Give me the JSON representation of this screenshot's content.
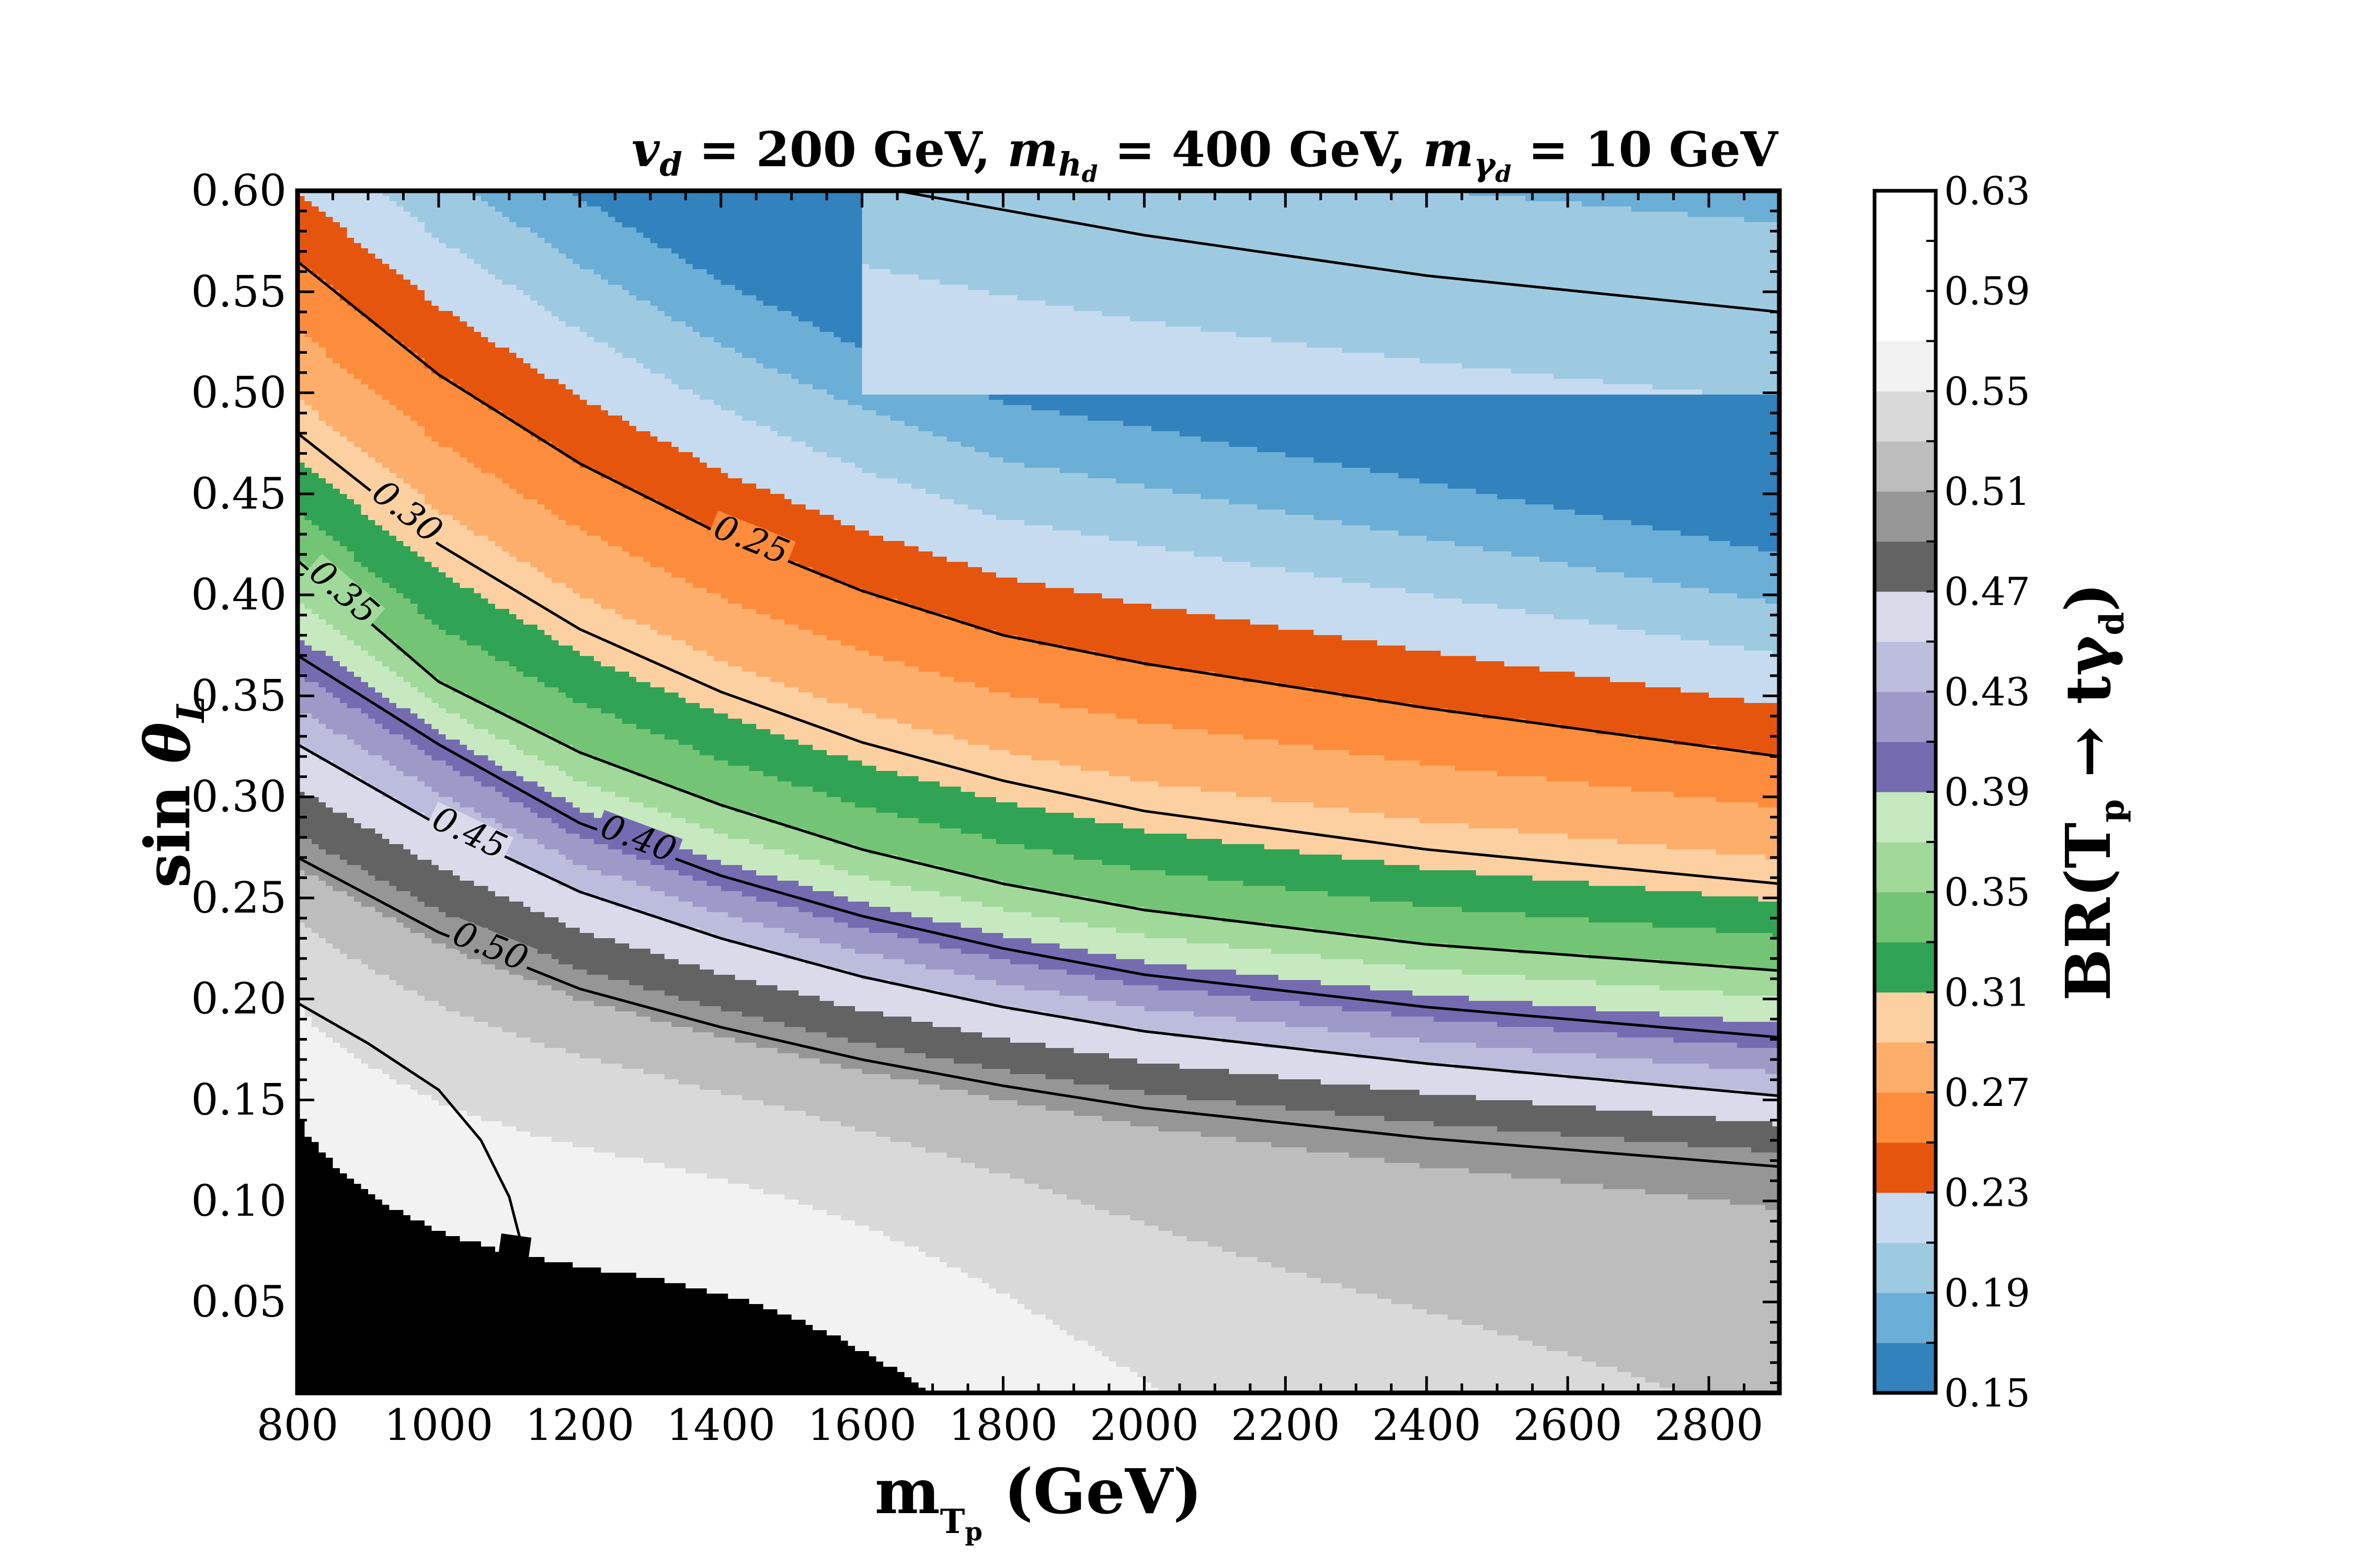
{
  "chart_data": {
    "type": "contour",
    "title_parts": {
      "v_sym": "v",
      "v_sub": "d",
      "v_val": " = 200 GeV, ",
      "mh_sym": "m",
      "mh_sub": "h",
      "mh_subsub": "d",
      "mh_val": " = 400 GeV, ",
      "mg_sym": "m",
      "mg_sub": "γ",
      "mg_subsub": "d",
      "mg_val": " = 10 GeV"
    },
    "xlabel_parts": {
      "main": "m",
      "sub": "T",
      "subsub": "p",
      "unit": " (GeV)"
    },
    "ylabel_parts": {
      "main": "sin ",
      "theta": "θ",
      "sub": "L"
    },
    "colorbar_label_parts": {
      "prefix": "BR(T",
      "sub1": "p",
      "arrow": " → tγ",
      "sub2": "d",
      "suffix": ")"
    },
    "xlim": [
      800,
      2900
    ],
    "ylim": [
      0.005,
      0.6
    ],
    "xticks": [
      800,
      1000,
      1200,
      1400,
      1600,
      1800,
      2000,
      2200,
      2400,
      2600,
      2800
    ],
    "xtick_labels": [
      "800",
      "1000",
      "1200",
      "1400",
      "1600",
      "1800",
      "2000",
      "2200",
      "2400",
      "2600",
      "2800"
    ],
    "yticks": [
      0.05,
      0.1,
      0.15,
      0.2,
      0.25,
      0.3,
      0.35,
      0.4,
      0.45,
      0.5,
      0.55,
      0.6
    ],
    "ytick_labels": [
      "0.05",
      "0.10",
      "0.15",
      "0.20",
      "0.25",
      "0.30",
      "0.35",
      "0.40",
      "0.45",
      "0.50",
      "0.55",
      "0.60"
    ],
    "levels": [
      0.15,
      0.17,
      0.19,
      0.21,
      0.23,
      0.25,
      0.27,
      0.29,
      0.31,
      0.33,
      0.35,
      0.37,
      0.39,
      0.41,
      0.43,
      0.45,
      0.47,
      0.49,
      0.51,
      0.53,
      0.55,
      0.57,
      0.59,
      0.61,
      0.63
    ],
    "level_colors": [
      "#3182bd",
      "#6baed6",
      "#9ecae1",
      "#c6dbef",
      "#e6550d",
      "#fd8d3c",
      "#fdae6b",
      "#fdd0a2",
      "#31a354",
      "#74c476",
      "#a1d99b",
      "#c7e9c0",
      "#756bb1",
      "#9e9ac8",
      "#bcbddc",
      "#dadaeb",
      "#636363",
      "#969696",
      "#bdbdbd",
      "#d9d9d9",
      "#f2f2f2"
    ],
    "colorbar_ticks": [
      0.15,
      0.19,
      0.23,
      0.27,
      0.31,
      0.35,
      0.39,
      0.43,
      0.47,
      0.51,
      0.55,
      0.59,
      0.63
    ],
    "colorbar_tick_labels": [
      "0.15",
      "0.19",
      "0.23",
      "0.27",
      "0.31",
      "0.35",
      "0.39",
      "0.43",
      "0.47",
      "0.51",
      "0.55",
      "0.59",
      "0.63"
    ],
    "contour_lines": [
      {
        "level": 0.2,
        "label": "",
        "points": [
          [
            1650,
            0.6
          ],
          [
            2000,
            0.578
          ],
          [
            2400,
            0.558
          ],
          [
            2900,
            0.54
          ]
        ]
      },
      {
        "level": 0.25,
        "label": "0.25",
        "points": [
          [
            800,
            0.565
          ],
          [
            1000,
            0.509
          ],
          [
            1200,
            0.465
          ],
          [
            1400,
            0.43
          ],
          [
            1600,
            0.402
          ],
          [
            1800,
            0.38
          ],
          [
            2000,
            0.366
          ],
          [
            2400,
            0.344
          ],
          [
            2900,
            0.32
          ]
        ]
      },
      {
        "level": 0.3,
        "label": "0.30",
        "points": [
          [
            800,
            0.48
          ],
          [
            1000,
            0.425
          ],
          [
            1200,
            0.383
          ],
          [
            1400,
            0.352
          ],
          [
            1600,
            0.327
          ],
          [
            1800,
            0.308
          ],
          [
            2000,
            0.293
          ],
          [
            2400,
            0.274
          ],
          [
            2900,
            0.257
          ]
        ]
      },
      {
        "level": 0.35,
        "label": "0.35",
        "points": [
          [
            800,
            0.417
          ],
          [
            1000,
            0.357
          ],
          [
            1200,
            0.322
          ],
          [
            1400,
            0.296
          ],
          [
            1600,
            0.274
          ],
          [
            1800,
            0.257
          ],
          [
            2000,
            0.244
          ],
          [
            2400,
            0.227
          ],
          [
            2900,
            0.214
          ]
        ]
      },
      {
        "level": 0.4,
        "label": "0.40",
        "points": [
          [
            800,
            0.37
          ],
          [
            1000,
            0.326
          ],
          [
            1200,
            0.287
          ],
          [
            1400,
            0.261
          ],
          [
            1600,
            0.241
          ],
          [
            1800,
            0.225
          ],
          [
            2000,
            0.212
          ],
          [
            2400,
            0.196
          ],
          [
            2900,
            0.181
          ]
        ]
      },
      {
        "level": 0.45,
        "label": "0.45",
        "points": [
          [
            800,
            0.326
          ],
          [
            1000,
            0.286
          ],
          [
            1200,
            0.253
          ],
          [
            1400,
            0.23
          ],
          [
            1600,
            0.211
          ],
          [
            1800,
            0.196
          ],
          [
            2000,
            0.184
          ],
          [
            2400,
            0.168
          ],
          [
            2900,
            0.152
          ]
        ]
      },
      {
        "level": 0.5,
        "label": "0.50",
        "points": [
          [
            800,
            0.27
          ],
          [
            1000,
            0.233
          ],
          [
            1200,
            0.205
          ],
          [
            1400,
            0.186
          ],
          [
            1600,
            0.17
          ],
          [
            1800,
            0.157
          ],
          [
            2000,
            0.146
          ],
          [
            2400,
            0.131
          ],
          [
            2900,
            0.117
          ]
        ]
      },
      {
        "level": 0.55,
        "label": "0.55",
        "points": [
          [
            800,
            0.198
          ],
          [
            900,
            0.178
          ],
          [
            1000,
            0.155
          ],
          [
            1060,
            0.13
          ],
          [
            1100,
            0.102
          ],
          [
            1120,
            0.075
          ],
          [
            1125,
            0.05
          ]
        ]
      }
    ]
  }
}
